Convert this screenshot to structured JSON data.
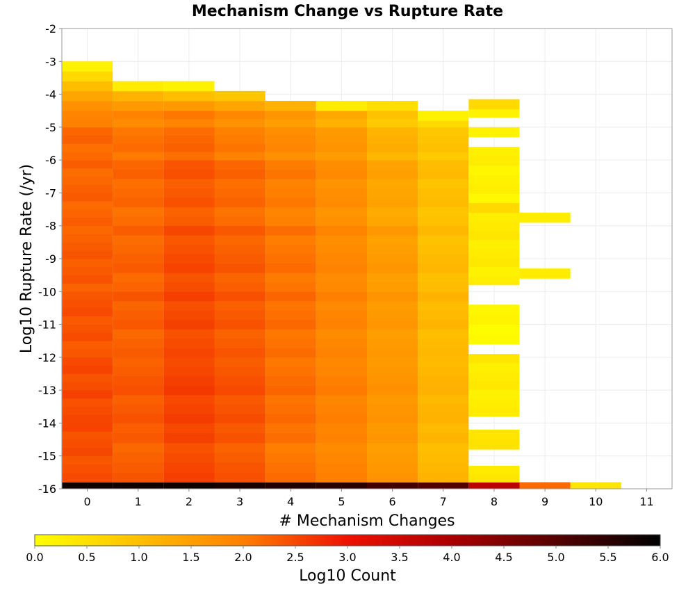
{
  "chart_data": {
    "type": "heatmap",
    "title": "Mechanism Change vs Rupture Rate",
    "xlabel": "# Mechanism Changes",
    "ylabel": "Log10 Rupture Rate (/yr)",
    "xlim": [
      -0.5,
      11.5
    ],
    "ylim": [
      -16,
      -2
    ],
    "x_ticks": [
      "0",
      "1",
      "2",
      "3",
      "4",
      "5",
      "6",
      "7",
      "8",
      "9",
      "10",
      "11"
    ],
    "y_ticks": [
      "-2",
      "-3",
      "-4",
      "-5",
      "-6",
      "-7",
      "-8",
      "-9",
      "-10",
      "-11",
      "-12",
      "-13",
      "-14",
      "-15",
      "-16"
    ],
    "grid": true,
    "colorbar": {
      "label": "Log10 Count",
      "range": [
        0,
        6
      ],
      "ticks": [
        "0.0",
        "0.5",
        "1.0",
        "1.5",
        "2.0",
        "2.5",
        "3.0",
        "3.5",
        "4.0",
        "4.5",
        "5.0",
        "5.5",
        "6.0"
      ],
      "placement": "bottom",
      "stops": [
        {
          "value": 0.0,
          "color": "#ffff00"
        },
        {
          "value": 2.0,
          "color": "#ff7f00"
        },
        {
          "value": 3.0,
          "color": "#ee1100"
        },
        {
          "value": 4.0,
          "color": "#aa0000"
        },
        {
          "value": 6.0,
          "color": "#000000"
        }
      ]
    },
    "bin_height": 0.2857,
    "columns": [
      {
        "x": 0,
        "segments": [
          {
            "from": -16,
            "to": -15.8,
            "value": 5.8
          },
          {
            "from": -15.8,
            "to": -15,
            "value": 2.4
          },
          {
            "from": -15,
            "to": -14,
            "value": 2.45
          },
          {
            "from": -14,
            "to": -13,
            "value": 2.5
          },
          {
            "from": -13,
            "to": -12,
            "value": 2.45
          },
          {
            "from": -12,
            "to": -11,
            "value": 2.4
          },
          {
            "from": -11,
            "to": -10,
            "value": 2.4
          },
          {
            "from": -10,
            "to": -9,
            "value": 2.35
          },
          {
            "from": -9,
            "to": -8,
            "value": 2.3
          },
          {
            "from": -8,
            "to": -7,
            "value": 2.25
          },
          {
            "from": -7,
            "to": -6,
            "value": 2.25
          },
          {
            "from": -6,
            "to": -5,
            "value": 2.2
          },
          {
            "from": -5,
            "to": -4.5,
            "value": 2.0
          },
          {
            "from": -4.5,
            "to": -4.2,
            "value": 1.7
          },
          {
            "from": -4.2,
            "to": -3.9,
            "value": 1.4
          },
          {
            "from": -3.9,
            "to": -3.6,
            "value": 1.0
          },
          {
            "from": -3.6,
            "to": -3.3,
            "value": 0.6
          },
          {
            "from": -3.3,
            "to": -3.0,
            "value": 0.2
          }
        ]
      },
      {
        "x": 1,
        "segments": [
          {
            "from": -16,
            "to": -15.8,
            "value": 5.8
          },
          {
            "from": -15.8,
            "to": -14,
            "value": 2.3
          },
          {
            "from": -14,
            "to": -12,
            "value": 2.35
          },
          {
            "from": -12,
            "to": -10,
            "value": 2.3
          },
          {
            "from": -10,
            "to": -8,
            "value": 2.25
          },
          {
            "from": -8,
            "to": -6,
            "value": 2.2
          },
          {
            "from": -6,
            "to": -5,
            "value": 2.1
          },
          {
            "from": -5,
            "to": -4.5,
            "value": 1.9
          },
          {
            "from": -4.5,
            "to": -4.2,
            "value": 1.6
          },
          {
            "from": -4.2,
            "to": -3.9,
            "value": 1.2
          },
          {
            "from": -3.9,
            "to": -3.6,
            "value": 0.3
          }
        ]
      },
      {
        "x": 2,
        "segments": [
          {
            "from": -16,
            "to": -15.8,
            "value": 5.8
          },
          {
            "from": -15.8,
            "to": -14,
            "value": 2.5
          },
          {
            "from": -14,
            "to": -12,
            "value": 2.55
          },
          {
            "from": -12,
            "to": -10,
            "value": 2.5
          },
          {
            "from": -10,
            "to": -8,
            "value": 2.45
          },
          {
            "from": -8,
            "to": -6,
            "value": 2.35
          },
          {
            "from": -6,
            "to": -5,
            "value": 2.2
          },
          {
            "from": -5,
            "to": -4.5,
            "value": 2.0
          },
          {
            "from": -4.5,
            "to": -4.2,
            "value": 1.6
          },
          {
            "from": -4.2,
            "to": -3.9,
            "value": 1.0
          },
          {
            "from": -3.9,
            "to": -3.6,
            "value": 0.2
          }
        ]
      },
      {
        "x": 3,
        "segments": [
          {
            "from": -16,
            "to": -15.8,
            "value": 5.7
          },
          {
            "from": -15.8,
            "to": -14,
            "value": 2.35
          },
          {
            "from": -14,
            "to": -12,
            "value": 2.4
          },
          {
            "from": -12,
            "to": -10,
            "value": 2.35
          },
          {
            "from": -10,
            "to": -8,
            "value": 2.3
          },
          {
            "from": -8,
            "to": -6,
            "value": 2.2
          },
          {
            "from": -6,
            "to": -5,
            "value": 2.0
          },
          {
            "from": -5,
            "to": -4.5,
            "value": 1.8
          },
          {
            "from": -4.5,
            "to": -4.2,
            "value": 1.4
          },
          {
            "from": -4.2,
            "to": -3.9,
            "value": 0.9
          }
        ]
      },
      {
        "x": 4,
        "segments": [
          {
            "from": -16,
            "to": -15.8,
            "value": 5.6
          },
          {
            "from": -15.8,
            "to": -14,
            "value": 2.1
          },
          {
            "from": -14,
            "to": -12,
            "value": 2.15
          },
          {
            "from": -12,
            "to": -10,
            "value": 2.15
          },
          {
            "from": -10,
            "to": -8,
            "value": 2.1
          },
          {
            "from": -8,
            "to": -6,
            "value": 2.0
          },
          {
            "from": -6,
            "to": -5,
            "value": 1.8
          },
          {
            "from": -5,
            "to": -4.5,
            "value": 1.6
          },
          {
            "from": -4.5,
            "to": -4.2,
            "value": 1.2
          }
        ]
      },
      {
        "x": 5,
        "segments": [
          {
            "from": -16,
            "to": -15.8,
            "value": 5.5
          },
          {
            "from": -15.8,
            "to": -14,
            "value": 1.9
          },
          {
            "from": -14,
            "to": -12,
            "value": 1.95
          },
          {
            "from": -12,
            "to": -10,
            "value": 1.9
          },
          {
            "from": -10,
            "to": -8,
            "value": 1.85
          },
          {
            "from": -8,
            "to": -6,
            "value": 1.75
          },
          {
            "from": -6,
            "to": -5,
            "value": 1.6
          },
          {
            "from": -5,
            "to": -4.5,
            "value": 1.3
          },
          {
            "from": -4.5,
            "to": -4.2,
            "value": 0.3
          }
        ]
      },
      {
        "x": 6,
        "segments": [
          {
            "from": -16,
            "to": -15.8,
            "value": 5.2
          },
          {
            "from": -15.8,
            "to": -14,
            "value": 1.6
          },
          {
            "from": -14,
            "to": -12,
            "value": 1.65
          },
          {
            "from": -12,
            "to": -10,
            "value": 1.6
          },
          {
            "from": -10,
            "to": -8,
            "value": 1.55
          },
          {
            "from": -8,
            "to": -6,
            "value": 1.4
          },
          {
            "from": -6,
            "to": -5,
            "value": 1.2
          },
          {
            "from": -5,
            "to": -4.5,
            "value": 0.9
          },
          {
            "from": -4.5,
            "to": -4.2,
            "value": 0.5
          }
        ]
      },
      {
        "x": 7,
        "segments": [
          {
            "from": -16,
            "to": -15.8,
            "value": 5.0
          },
          {
            "from": -15.8,
            "to": -14,
            "value": 1.1
          },
          {
            "from": -14,
            "to": -12,
            "value": 1.15
          },
          {
            "from": -12,
            "to": -10,
            "value": 1.1
          },
          {
            "from": -10,
            "to": -8,
            "value": 1.05
          },
          {
            "from": -8,
            "to": -6,
            "value": 1.0
          },
          {
            "from": -6,
            "to": -5,
            "value": 0.9
          },
          {
            "from": -5,
            "to": -4.8,
            "value": 0.6
          },
          {
            "from": -4.8,
            "to": -4.5,
            "value": 0.2
          }
        ]
      },
      {
        "x": 8,
        "segments": [
          {
            "from": -16,
            "to": -15.8,
            "value": 3.8
          },
          {
            "from": -15.8,
            "to": -15.3,
            "value": 0.3
          },
          {
            "from": -14.8,
            "to": -14.2,
            "value": 0.4
          },
          {
            "from": -13.8,
            "to": -11.9,
            "value": 0.3
          },
          {
            "from": -11.6,
            "to": -10.4,
            "value": 0.1
          },
          {
            "from": -9.8,
            "to": -7.6,
            "value": 0.3
          },
          {
            "from": -7.6,
            "to": -7.3,
            "value": 0.6
          },
          {
            "from": -7.3,
            "to": -5.6,
            "value": 0.2
          },
          {
            "from": -5.3,
            "to": -5.0,
            "value": 0.2
          },
          {
            "from": -4.7,
            "to": -4.45,
            "value": 0.2
          },
          {
            "from": -4.45,
            "to": -4.15,
            "value": 0.6
          }
        ]
      },
      {
        "x": 9,
        "segments": [
          {
            "from": -16,
            "to": -15.8,
            "value": 2.2
          },
          {
            "from": -9.6,
            "to": -9.3,
            "value": 0.3
          },
          {
            "from": -7.9,
            "to": -7.6,
            "value": 0.3
          }
        ]
      },
      {
        "x": 10,
        "segments": [
          {
            "from": -16,
            "to": -15.8,
            "value": 0.4
          }
        ]
      }
    ]
  }
}
